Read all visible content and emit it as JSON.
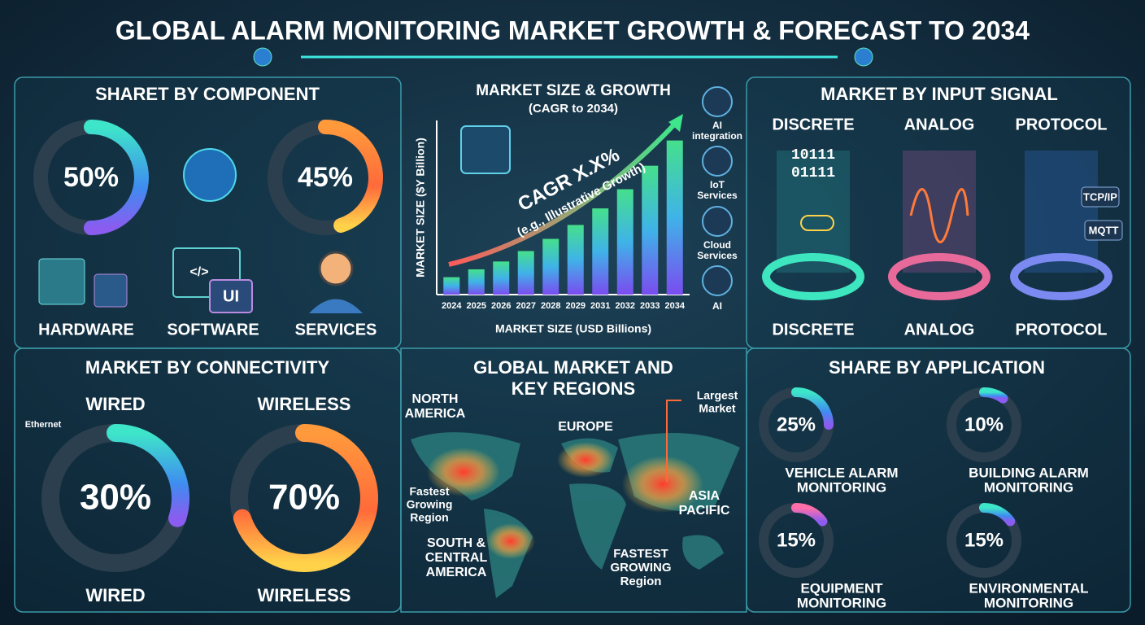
{
  "header": {
    "title": "GLOBAL ALARM MONITORING MARKET GROWTH & FORECAST TO 2034"
  },
  "component": {
    "title": "SHARET BY COMPONENT",
    "shares": [
      {
        "value": 50,
        "label": "50%"
      },
      {
        "value": 45,
        "label": "45%"
      }
    ],
    "items": [
      "HARDWARE",
      "SOFTWARE",
      "SERVICES"
    ],
    "icon_text": [
      "</>",
      "UI"
    ]
  },
  "growth": {
    "title": "MARKET SIZE & GROWTH",
    "subtitle": "(CAGR to 2034)",
    "cagr": "CAGR X.X%",
    "note": "(e.g., Illustrative Growth)",
    "side_icons": [
      [
        "AI",
        "integration"
      ],
      [
        "IoT",
        "Services"
      ],
      [
        "Cloud",
        "Services"
      ],
      [
        "AI"
      ]
    ]
  },
  "chart_data": {
    "type": "bar",
    "y_label": "MARKET SIZE ($Y Billion)",
    "x_label": "MARKET SIZE (USD Billions)",
    "categories": [
      "2024",
      "2025",
      "2026",
      "2027",
      "2028",
      "2029",
      "2031",
      "2032",
      "2033",
      "2034"
    ],
    "values": [
      20,
      29,
      38,
      50,
      64,
      80,
      99,
      121,
      148,
      177
    ],
    "ylim": [
      0,
      200
    ]
  },
  "signal": {
    "title": "MARKET BY INPUT SIGNAL",
    "types": [
      "DISCRETE",
      "ANALOG",
      "PROTOCOL"
    ],
    "bottom_labels": [
      "DISCRETE",
      "ANALOG",
      "PROTOCOL"
    ],
    "binary": [
      "10111",
      "01111"
    ],
    "protocols": [
      "TCP/IP",
      "MQTT"
    ]
  },
  "connectivity": {
    "title": "MARKET BY CONNECTIVITY",
    "ethernet": "Ethernet",
    "types": [
      {
        "name": "WIRED",
        "value": 30,
        "label": "30%",
        "footer": "WIRED"
      },
      {
        "name": "WIRELESS",
        "value": 70,
        "label": "70%",
        "footer": "WIRELESS"
      }
    ]
  },
  "regions": {
    "title": [
      "GLOBAL MARKET AND",
      "KEY REGIONS"
    ],
    "labels": [
      [
        "NORTH",
        "AMERICA"
      ],
      [
        "EUROPE"
      ],
      [
        "Largest",
        "Market"
      ],
      [
        "Fastest",
        "Growing",
        "Region"
      ],
      [
        "SOUTH &",
        "CENTRAL",
        "AMERICA"
      ],
      [
        "ASIA",
        "PACIFIC"
      ],
      [
        "FASTEST",
        "GROWING",
        "Region"
      ]
    ]
  },
  "application": {
    "title": "SHARE BY APPLICATION",
    "items": [
      {
        "value": 25,
        "label": "25%",
        "name": [
          "VEHICLE ALARM",
          "MONITORING"
        ]
      },
      {
        "value": 10,
        "label": "10%",
        "name": [
          "BUILDING ALARM",
          "MONITORING"
        ]
      },
      {
        "value": 15,
        "label": "15%",
        "name": [
          "EQUIPMENT",
          "MONITORING"
        ]
      },
      {
        "value": 15,
        "label": "15%",
        "name": [
          "ENVIRONMENTAL",
          "MONITORING"
        ]
      }
    ]
  }
}
